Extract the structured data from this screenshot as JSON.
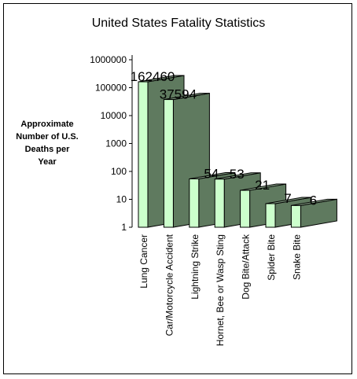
{
  "chart_data": {
    "type": "bar",
    "title": "United States Fatality Statistics",
    "ylabel_lines": [
      "Approximate",
      "Number of U.S.",
      "Deaths per",
      "Year"
    ],
    "xlabel": "",
    "scale": "log",
    "ylim": [
      1,
      1000000
    ],
    "yticks": [
      "1",
      "10",
      "100",
      "1000",
      "10000",
      "100000",
      "1000000"
    ],
    "categories": [
      "Lung Cancer",
      "Car/Motorcycle Accident",
      "Lightning Strike",
      "Hornet, Bee or Wasp Sting",
      "Dog Bite/Attack",
      "Spider Bite",
      "Snake Bite"
    ],
    "values": [
      162460,
      37594,
      54,
      53,
      21,
      7,
      6
    ],
    "data_labels": [
      "162460",
      "37594",
      "54",
      "53",
      "21",
      "7",
      "6"
    ],
    "grid": false,
    "legend": "none",
    "style": "3d-column",
    "colors": {
      "front": "#ccffcc",
      "side": "#5f7a5f",
      "top": "#8aa58a",
      "edge": "#000000"
    }
  }
}
